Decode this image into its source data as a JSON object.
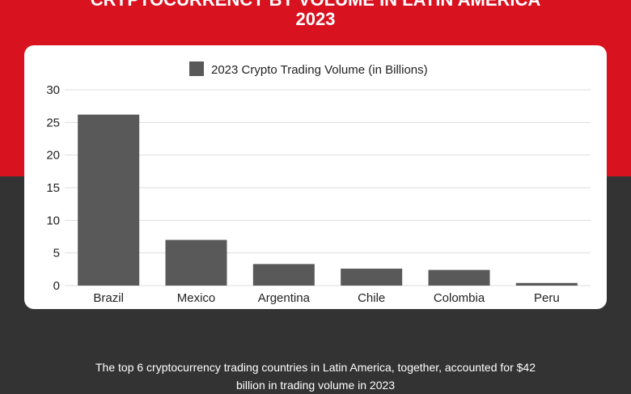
{
  "title_lines": [
    "CRYPTOCURRENCY BY VOLUME IN LATIN AMERICA",
    "2023"
  ],
  "caption_lines": [
    "The top 6 cryptocurrency trading countries in Latin America, together, accounted for $42",
    "billion in trading volume in 2023"
  ],
  "colors": {
    "band": "#d9121f",
    "background": "#333333",
    "bar": "#595959",
    "card": "#ffffff"
  },
  "chart_data": {
    "type": "bar",
    "title": "",
    "xlabel": "",
    "ylabel": "",
    "legend_position": "top-center",
    "grid": true,
    "ylim": [
      0,
      30
    ],
    "yticks": [
      "0",
      "5",
      "10",
      "15",
      "20",
      "25",
      "30"
    ],
    "categories": [
      "Brazil",
      "Mexico",
      "Argentina",
      "Chile",
      "Colombia",
      "Peru"
    ],
    "series": [
      {
        "name": "2023 Crypto Trading Volume (in Billions)",
        "values": [
          26.2,
          7.0,
          3.3,
          2.6,
          2.4,
          0.4
        ]
      }
    ]
  }
}
